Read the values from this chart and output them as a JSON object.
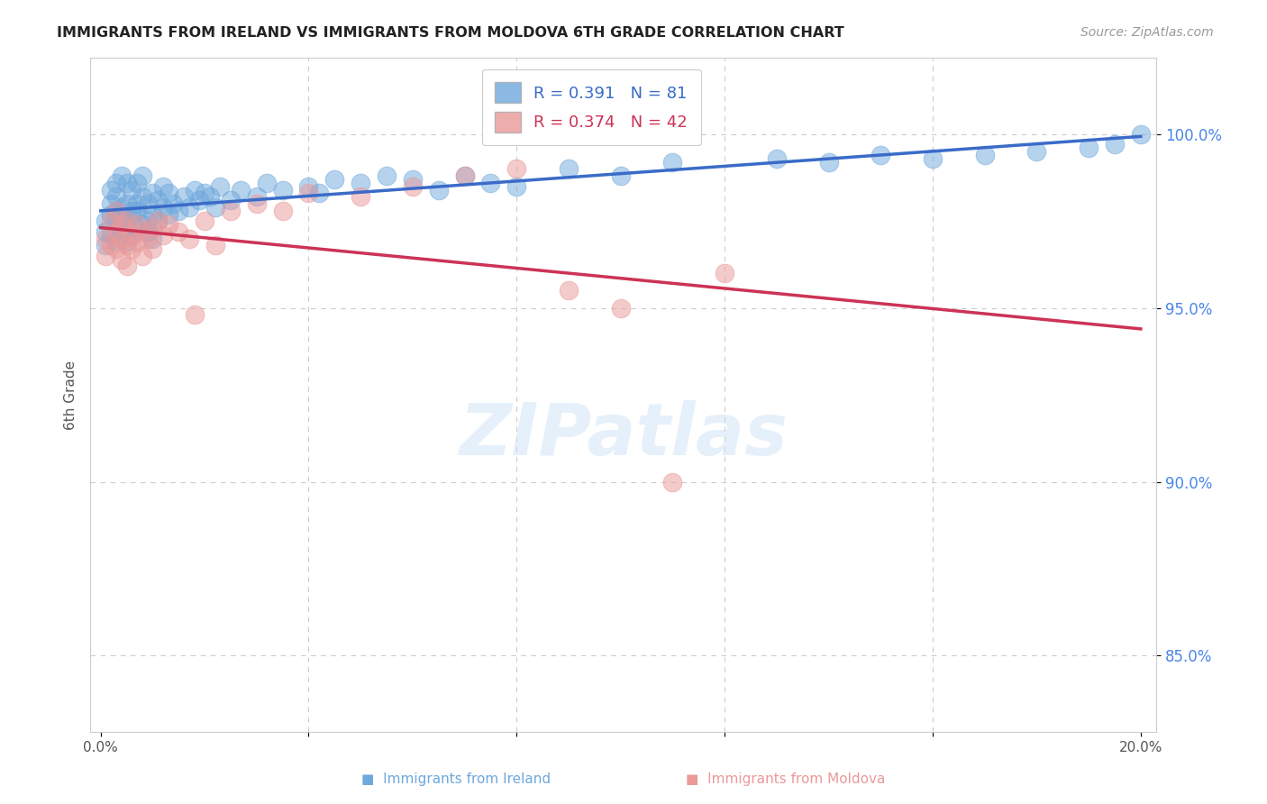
{
  "title": "IMMIGRANTS FROM IRELAND VS IMMIGRANTS FROM MOLDOVA 6TH GRADE CORRELATION CHART",
  "source": "Source: ZipAtlas.com",
  "ylabel": "6th Grade",
  "ireland_color": "#6fa8dc",
  "moldova_color": "#ea9999",
  "ireland_line_color": "#3a6bc8",
  "moldova_line_color": "#cc3355",
  "ireland_label": "Immigrants from Ireland",
  "moldova_label": "Immigrants from Moldova",
  "legend_ireland": "R = 0.391   N = 81",
  "legend_moldova": "R = 0.374   N = 42",
  "x_min": 0.0,
  "x_max": 0.2,
  "y_min": 0.828,
  "y_max": 1.022,
  "y_ticks": [
    0.85,
    0.9,
    0.95,
    1.0
  ],
  "y_tick_labels": [
    "85.0%",
    "90.0%",
    "95.0%",
    "100.0%"
  ],
  "x_ticks": [
    0.0,
    0.04,
    0.08,
    0.12,
    0.16,
    0.2
  ],
  "x_tick_labels": [
    "0.0%",
    "",
    "",
    "",
    "",
    "20.0%"
  ],
  "watermark": "ZIPatlas",
  "ireland_x": [
    0.001,
    0.001,
    0.001,
    0.002,
    0.002,
    0.002,
    0.002,
    0.003,
    0.003,
    0.003,
    0.003,
    0.003,
    0.004,
    0.004,
    0.004,
    0.004,
    0.005,
    0.005,
    0.005,
    0.005,
    0.005,
    0.006,
    0.006,
    0.006,
    0.006,
    0.007,
    0.007,
    0.007,
    0.007,
    0.008,
    0.008,
    0.008,
    0.009,
    0.009,
    0.009,
    0.01,
    0.01,
    0.01,
    0.011,
    0.011,
    0.012,
    0.012,
    0.013,
    0.013,
    0.014,
    0.015,
    0.016,
    0.017,
    0.018,
    0.019,
    0.02,
    0.021,
    0.022,
    0.023,
    0.025,
    0.027,
    0.03,
    0.032,
    0.035,
    0.04,
    0.042,
    0.045,
    0.05,
    0.055,
    0.06,
    0.065,
    0.07,
    0.075,
    0.08,
    0.09,
    0.1,
    0.11,
    0.13,
    0.14,
    0.15,
    0.16,
    0.17,
    0.18,
    0.19,
    0.195,
    0.2
  ],
  "ireland_y": [
    0.975,
    0.968,
    0.972,
    0.98,
    0.971,
    0.977,
    0.984,
    0.975,
    0.982,
    0.969,
    0.978,
    0.986,
    0.972,
    0.979,
    0.988,
    0.976,
    0.973,
    0.98,
    0.975,
    0.969,
    0.986,
    0.978,
    0.984,
    0.971,
    0.977,
    0.98,
    0.973,
    0.986,
    0.978,
    0.974,
    0.982,
    0.988,
    0.975,
    0.98,
    0.972,
    0.977,
    0.983,
    0.97,
    0.981,
    0.975,
    0.979,
    0.985,
    0.977,
    0.983,
    0.98,
    0.978,
    0.982,
    0.979,
    0.984,
    0.981,
    0.983,
    0.982,
    0.979,
    0.985,
    0.981,
    0.984,
    0.982,
    0.986,
    0.984,
    0.985,
    0.983,
    0.987,
    0.986,
    0.988,
    0.987,
    0.984,
    0.988,
    0.986,
    0.985,
    0.99,
    0.988,
    0.992,
    0.993,
    0.992,
    0.994,
    0.993,
    0.994,
    0.995,
    0.996,
    0.997,
    1.0
  ],
  "moldova_x": [
    0.001,
    0.001,
    0.002,
    0.002,
    0.003,
    0.003,
    0.003,
    0.004,
    0.004,
    0.004,
    0.005,
    0.005,
    0.005,
    0.006,
    0.006,
    0.007,
    0.007,
    0.008,
    0.008,
    0.009,
    0.01,
    0.01,
    0.011,
    0.012,
    0.013,
    0.015,
    0.017,
    0.02,
    0.025,
    0.03,
    0.035,
    0.04,
    0.05,
    0.06,
    0.07,
    0.08,
    0.09,
    0.1,
    0.11,
    0.12,
    0.022,
    0.018
  ],
  "moldova_y": [
    0.97,
    0.965,
    0.968,
    0.975,
    0.972,
    0.967,
    0.978,
    0.97,
    0.964,
    0.974,
    0.968,
    0.975,
    0.962,
    0.971,
    0.967,
    0.974,
    0.969,
    0.972,
    0.965,
    0.97,
    0.973,
    0.967,
    0.975,
    0.971,
    0.974,
    0.972,
    0.97,
    0.975,
    0.978,
    0.98,
    0.978,
    0.983,
    0.982,
    0.985,
    0.988,
    0.99,
    0.955,
    0.95,
    0.9,
    0.96,
    0.968,
    0.948
  ]
}
